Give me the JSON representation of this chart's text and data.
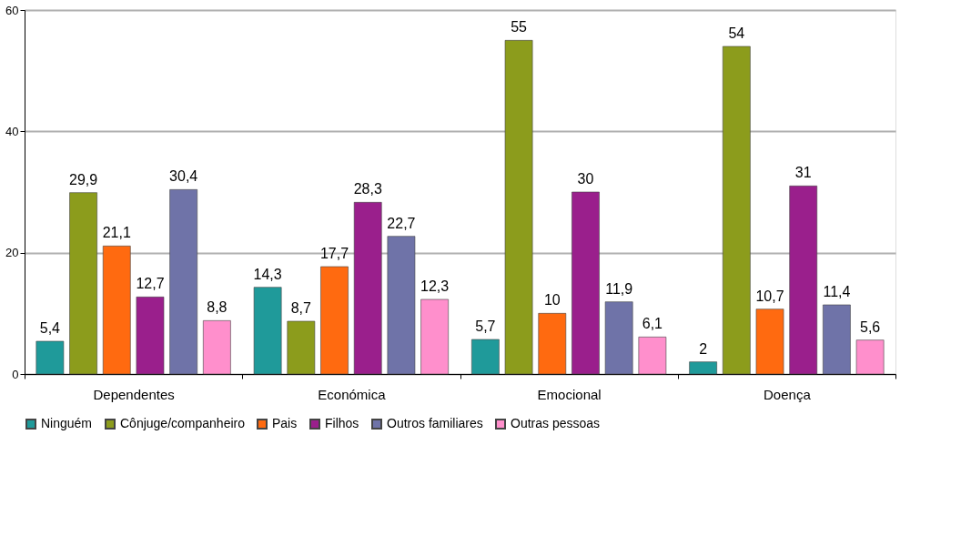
{
  "chart_data": {
    "type": "bar",
    "categories": [
      "Dependentes",
      "Económica",
      "Emocional",
      "Doença"
    ],
    "series": [
      {
        "name": "Ninguém",
        "color": "#1f9a9a",
        "values": [
          5.4,
          14.3,
          5.7,
          2
        ],
        "value_labels": [
          "5,4",
          "14,3",
          "5,7",
          "2"
        ]
      },
      {
        "name": "Cônjuge/companheiro",
        "color": "#8c9c1c",
        "values": [
          29.9,
          8.7,
          55,
          54
        ],
        "value_labels": [
          "29,9",
          "8,7",
          "55",
          "54"
        ]
      },
      {
        "name": "Pais",
        "color": "#ff6a10",
        "values": [
          21.1,
          17.7,
          10,
          10.7
        ],
        "value_labels": [
          "21,1",
          "17,7",
          "10",
          "10,7"
        ]
      },
      {
        "name": "Filhos",
        "color": "#9a1f8c",
        "values": [
          12.7,
          28.3,
          30,
          31
        ],
        "value_labels": [
          "12,7",
          "28,3",
          "30",
          "31"
        ]
      },
      {
        "name": "Outros familiares",
        "color": "#6f73a8",
        "values": [
          30.4,
          22.7,
          11.9,
          11.4
        ],
        "value_labels": [
          "30,4",
          "22,7",
          "11,9",
          "11,4"
        ]
      },
      {
        "name": "Outras pessoas",
        "color": "#ff8fcc",
        "values": [
          8.8,
          12.3,
          6.1,
          5.6
        ],
        "value_labels": [
          "8,8",
          "12,3",
          "6,1",
          "5,6"
        ]
      }
    ],
    "ylim": [
      0,
      60
    ],
    "yticks": [
      0,
      20,
      40,
      60
    ],
    "grid": "y",
    "legend": "bottom"
  }
}
